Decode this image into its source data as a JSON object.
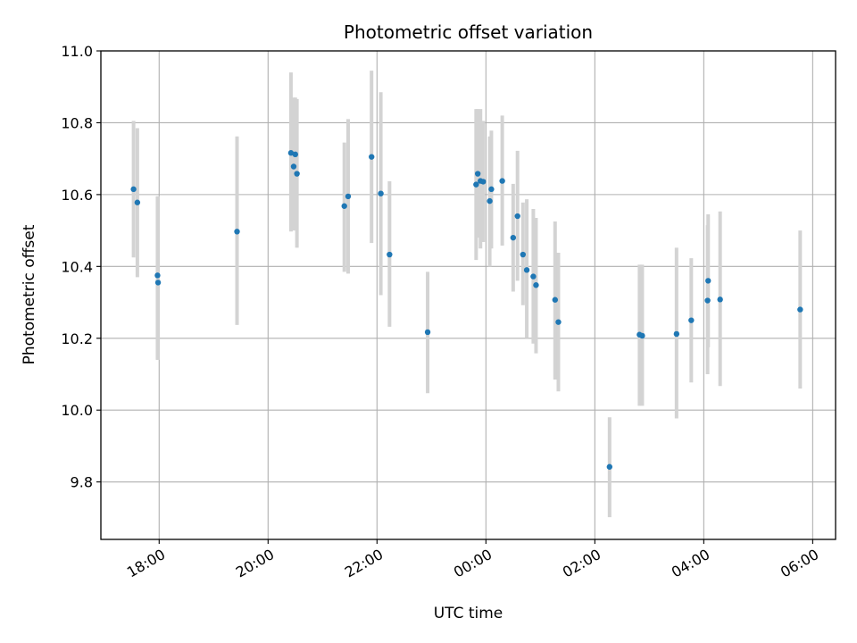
{
  "chart_data": {
    "type": "scatter",
    "title": "Photometric offset variation",
    "xlabel": "UTC time",
    "ylabel": "Photometric offset",
    "x_unit": "hours since 00:00 UTC",
    "xlim": [
      16.93,
      30.42
    ],
    "ylim": [
      9.64,
      11.0
    ],
    "grid": true,
    "x_ticks": [
      {
        "value": 18,
        "label": "18:00"
      },
      {
        "value": 20,
        "label": "20:00"
      },
      {
        "value": 22,
        "label": "22:00"
      },
      {
        "value": 24,
        "label": "00:00"
      },
      {
        "value": 26,
        "label": "02:00"
      },
      {
        "value": 28,
        "label": "04:00"
      },
      {
        "value": 30,
        "label": "06:00"
      }
    ],
    "y_ticks": [
      {
        "value": 9.8,
        "label": "9.8"
      },
      {
        "value": 10.0,
        "label": "10.0"
      },
      {
        "value": 10.2,
        "label": "10.2"
      },
      {
        "value": 10.4,
        "label": "10.4"
      },
      {
        "value": 10.6,
        "label": "10.6"
      },
      {
        "value": 10.8,
        "label": "10.8"
      },
      {
        "value": 11.0,
        "label": "11.0"
      }
    ],
    "marker_color": "#1f77b4",
    "errorbar_color": "#d3d3d3",
    "points": [
      {
        "t": 17.53,
        "y": 10.615,
        "lo": 10.425,
        "hi": 10.805
      },
      {
        "t": 17.6,
        "y": 10.578,
        "lo": 10.37,
        "hi": 10.785
      },
      {
        "t": 17.97,
        "y": 10.375,
        "lo": 10.14,
        "hi": 10.595
      },
      {
        "t": 17.98,
        "y": 10.355,
        "lo": 10.14,
        "hi": 10.595
      },
      {
        "t": 19.43,
        "y": 10.497,
        "lo": 10.237,
        "hi": 10.762
      },
      {
        "t": 20.42,
        "y": 10.716,
        "lo": 10.497,
        "hi": 10.94
      },
      {
        "t": 20.47,
        "y": 10.678,
        "lo": 10.5,
        "hi": 10.87
      },
      {
        "t": 20.5,
        "y": 10.712,
        "lo": 10.54,
        "hi": 10.87
      },
      {
        "t": 20.53,
        "y": 10.658,
        "lo": 10.452,
        "hi": 10.866
      },
      {
        "t": 21.4,
        "y": 10.568,
        "lo": 10.385,
        "hi": 10.745
      },
      {
        "t": 21.47,
        "y": 10.595,
        "lo": 10.38,
        "hi": 10.81
      },
      {
        "t": 21.9,
        "y": 10.705,
        "lo": 10.465,
        "hi": 10.945
      },
      {
        "t": 22.07,
        "y": 10.603,
        "lo": 10.32,
        "hi": 10.885
      },
      {
        "t": 22.23,
        "y": 10.433,
        "lo": 10.232,
        "hi": 10.637
      },
      {
        "t": 22.93,
        "y": 10.217,
        "lo": 10.047,
        "hi": 10.385
      },
      {
        "t": 23.82,
        "y": 10.628,
        "lo": 10.418,
        "hi": 10.838
      },
      {
        "t": 23.85,
        "y": 10.658,
        "lo": 10.48,
        "hi": 10.838
      },
      {
        "t": 23.9,
        "y": 10.638,
        "lo": 10.45,
        "hi": 10.838
      },
      {
        "t": 23.95,
        "y": 10.636,
        "lo": 10.468,
        "hi": 10.805
      },
      {
        "t": 24.07,
        "y": 10.582,
        "lo": 10.4,
        "hi": 10.762
      },
      {
        "t": 24.1,
        "y": 10.615,
        "lo": 10.45,
        "hi": 10.778
      },
      {
        "t": 24.3,
        "y": 10.638,
        "lo": 10.458,
        "hi": 10.82
      },
      {
        "t": 24.5,
        "y": 10.48,
        "lo": 10.33,
        "hi": 10.63
      },
      {
        "t": 24.58,
        "y": 10.54,
        "lo": 10.36,
        "hi": 10.722
      },
      {
        "t": 24.68,
        "y": 10.433,
        "lo": 10.292,
        "hi": 10.578
      },
      {
        "t": 24.75,
        "y": 10.39,
        "lo": 10.2,
        "hi": 10.587
      },
      {
        "t": 24.87,
        "y": 10.372,
        "lo": 10.185,
        "hi": 10.56
      },
      {
        "t": 24.92,
        "y": 10.348,
        "lo": 10.158,
        "hi": 10.535
      },
      {
        "t": 25.27,
        "y": 10.307,
        "lo": 10.085,
        "hi": 10.525
      },
      {
        "t": 25.33,
        "y": 10.245,
        "lo": 10.052,
        "hi": 10.438
      },
      {
        "t": 26.27,
        "y": 9.842,
        "lo": 9.702,
        "hi": 9.98
      },
      {
        "t": 26.82,
        "y": 10.21,
        "lo": 10.012,
        "hi": 10.405
      },
      {
        "t": 26.87,
        "y": 10.207,
        "lo": 10.012,
        "hi": 10.405
      },
      {
        "t": 27.5,
        "y": 10.212,
        "lo": 9.977,
        "hi": 10.452
      },
      {
        "t": 27.77,
        "y": 10.25,
        "lo": 10.077,
        "hi": 10.423
      },
      {
        "t": 28.07,
        "y": 10.305,
        "lo": 10.1,
        "hi": 10.515
      },
      {
        "t": 28.08,
        "y": 10.36,
        "lo": 10.175,
        "hi": 10.545
      },
      {
        "t": 28.3,
        "y": 10.308,
        "lo": 10.067,
        "hi": 10.553
      },
      {
        "t": 29.77,
        "y": 10.28,
        "lo": 10.06,
        "hi": 10.5
      }
    ]
  }
}
